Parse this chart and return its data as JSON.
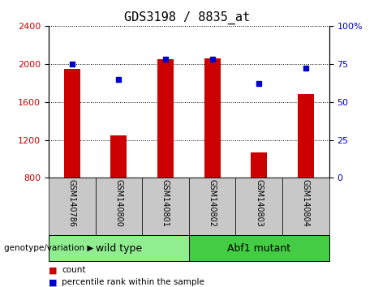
{
  "title": "GDS3198 / 8835_at",
  "samples": [
    "GSM140786",
    "GSM140800",
    "GSM140801",
    "GSM140802",
    "GSM140803",
    "GSM140804"
  ],
  "counts": [
    1950,
    1250,
    2050,
    2060,
    1070,
    1680
  ],
  "percentiles": [
    75,
    65,
    78,
    78,
    62,
    72
  ],
  "ylim_left": [
    800,
    2400
  ],
  "ylim_right": [
    0,
    100
  ],
  "yticks_left": [
    800,
    1200,
    1600,
    2000,
    2400
  ],
  "yticks_right": [
    0,
    25,
    50,
    75,
    100
  ],
  "bar_color": "#CC0000",
  "dot_color": "#0000CC",
  "bar_width": 0.35,
  "groups": [
    {
      "label": "wild type",
      "indices": [
        0,
        1,
        2
      ],
      "color": "#90EE90"
    },
    {
      "label": "Abf1 mutant",
      "indices": [
        3,
        4,
        5
      ],
      "color": "#44CC44"
    }
  ],
  "group_label_prefix": "genotype/variation",
  "legend_count_label": "count",
  "legend_pct_label": "percentile rank within the sample",
  "label_bg_color": "#C8C8C8",
  "title_fontsize": 11,
  "tick_fontsize": 8,
  "sample_fontsize": 7,
  "group_fontsize": 9
}
